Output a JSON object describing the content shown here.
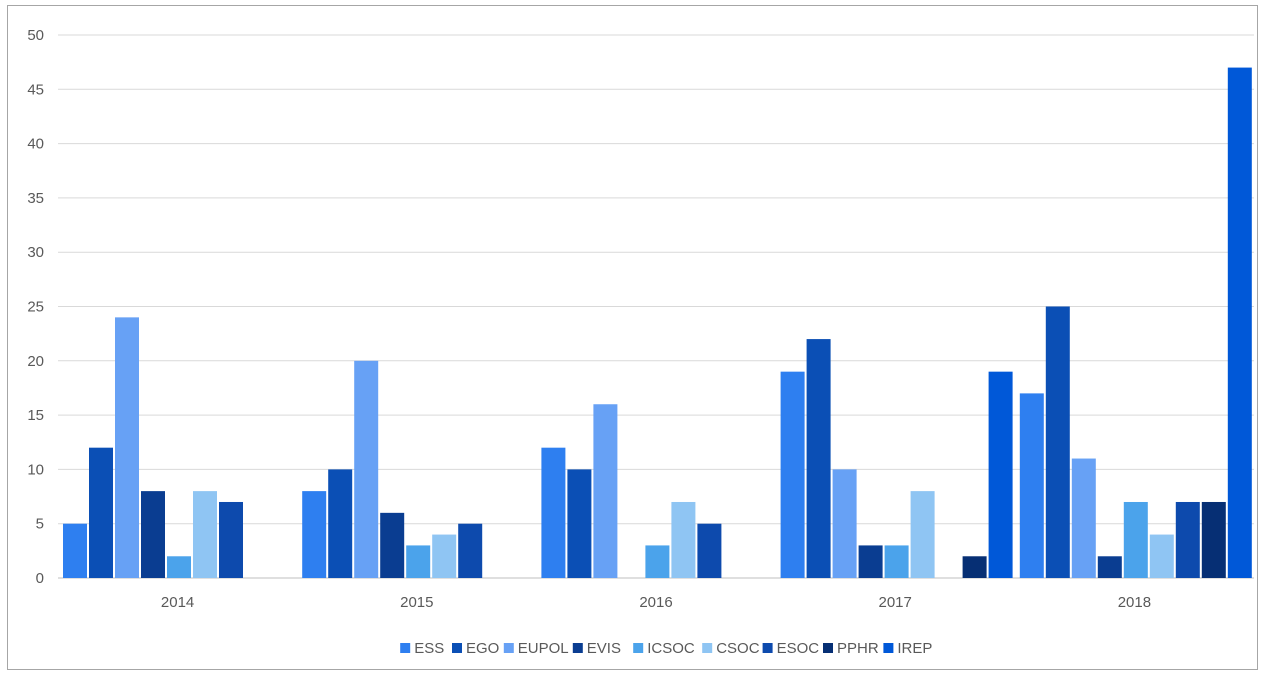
{
  "chart_data": {
    "type": "bar",
    "categories": [
      "2014",
      "2015",
      "2016",
      "2017",
      "2018"
    ],
    "ylim": [
      0,
      50
    ],
    "yticks": [
      0,
      5,
      10,
      15,
      20,
      25,
      30,
      35,
      40,
      45,
      50
    ],
    "grid": true,
    "legend_position": "bottom",
    "series": [
      {
        "name": "ESS",
        "color": "#2e7ff0",
        "values": [
          5,
          8,
          12,
          19,
          17
        ]
      },
      {
        "name": "EGO",
        "color": "#0b4fb5",
        "values": [
          12,
          10,
          10,
          22,
          25
        ]
      },
      {
        "name": "EUPOL",
        "color": "#67a1f5",
        "values": [
          24,
          20,
          16,
          10,
          11
        ]
      },
      {
        "name": "EVIS",
        "color": "#0a3d91",
        "values": [
          8,
          6,
          0,
          3,
          2
        ]
      },
      {
        "name": "ICSOC",
        "color": "#4ba3eb",
        "values": [
          2,
          3,
          3,
          3,
          7
        ]
      },
      {
        "name": "CSOC",
        "color": "#8fc5f3",
        "values": [
          8,
          4,
          7,
          8,
          4
        ]
      },
      {
        "name": "ESOC",
        "color": "#0d4aad",
        "values": [
          7,
          5,
          5,
          0,
          7
        ]
      },
      {
        "name": "PPHR",
        "color": "#062f74",
        "values": [
          0,
          0,
          0,
          2,
          7
        ]
      },
      {
        "name": "IREP",
        "color": "#0058d8",
        "values": [
          0,
          0,
          0,
          19,
          47
        ]
      }
    ]
  }
}
